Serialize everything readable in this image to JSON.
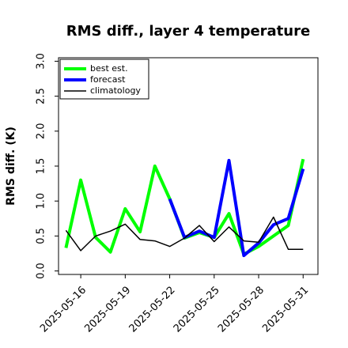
{
  "chart_data": {
    "type": "line",
    "title": "RMS diff., layer 4 temperature",
    "xlabel": "",
    "ylabel": "RMS diff. (K)",
    "ylim": [
      -0.05,
      3.05
    ],
    "yticks": [
      "0.0",
      "0.5",
      "1.0",
      "1.5",
      "2.0",
      "2.5",
      "3.0"
    ],
    "xlim": [
      "2025-05-14T12",
      "2025-06-01"
    ],
    "xticks": [
      "2025-05-16",
      "2025-05-19",
      "2025-05-22",
      "2025-05-25",
      "2025-05-28",
      "2025-05-31"
    ],
    "highlighted_xtick": "2025-05-22",
    "highlight_color": "#228b22",
    "grid": false,
    "legend_position": "top-left",
    "series": [
      {
        "name": "best est.",
        "color": "#00ff00",
        "linewidth": "thick",
        "x": [
          "2025-05-15",
          "2025-05-16",
          "2025-05-17",
          "2025-05-18",
          "2025-05-19",
          "2025-05-20",
          "2025-05-21",
          "2025-05-22",
          "2025-05-23",
          "2025-05-24",
          "2025-05-25",
          "2025-05-26",
          "2025-05-27",
          "2025-05-28",
          "2025-05-29",
          "2025-05-30",
          "2025-05-31"
        ],
        "values": [
          0.33,
          1.3,
          0.48,
          0.27,
          0.89,
          0.56,
          1.5,
          1.03,
          0.47,
          0.55,
          0.48,
          0.82,
          0.24,
          0.35,
          0.5,
          0.65,
          1.6
        ]
      },
      {
        "name": "forecast",
        "color": "#0000ff",
        "linewidth": "thick",
        "x": [
          "2025-05-22",
          "2025-05-23",
          "2025-05-24",
          "2025-05-25",
          "2025-05-26",
          "2025-05-27",
          "2025-05-28",
          "2025-05-29",
          "2025-05-30",
          "2025-05-31"
        ],
        "values": [
          1.03,
          0.48,
          0.57,
          0.48,
          1.58,
          0.22,
          0.4,
          0.66,
          0.75,
          1.46
        ]
      },
      {
        "name": "climatology",
        "color": "#000000",
        "linewidth": "thin",
        "x": [
          "2025-05-15",
          "2025-05-16",
          "2025-05-17",
          "2025-05-18",
          "2025-05-19",
          "2025-05-20",
          "2025-05-21",
          "2025-05-22",
          "2025-05-23",
          "2025-05-24",
          "2025-05-25",
          "2025-05-26",
          "2025-05-27",
          "2025-05-28",
          "2025-05-29",
          "2025-05-30",
          "2025-05-31"
        ],
        "values": [
          0.58,
          0.29,
          0.5,
          0.57,
          0.67,
          0.45,
          0.43,
          0.35,
          0.47,
          0.65,
          0.42,
          0.63,
          0.43,
          0.41,
          0.77,
          0.31,
          0.31
        ]
      }
    ]
  }
}
